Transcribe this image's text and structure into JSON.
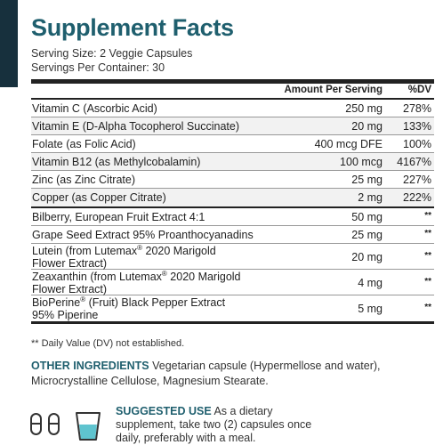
{
  "title": "Supplement Facts",
  "serving_size": "Serving Size: 2 Veggie Capsules",
  "servings_per_container": "Servings Per Container: 30",
  "header": {
    "amount": "Amount Per Serving",
    "dv": "%DV"
  },
  "vitamins": [
    {
      "name": "Vitamin C (Ascorbic Acid)",
      "amount": "250 mg",
      "dv": "278%"
    },
    {
      "name": "Vitamin E (D-Alpha Tocopherol Succinate)",
      "amount": "20 mg",
      "dv": "133%"
    },
    {
      "name": "Folate (as Folic Acid)",
      "amount": "400 mcg DFE",
      "dv": "100%"
    },
    {
      "name": "Vitamin B12 (as Methylcobalamin)",
      "amount": "100 mcg",
      "dv": "4167%"
    },
    {
      "name": "Zinc (as Zinc Citrate)",
      "amount": "25 mg",
      "dv": "227%"
    },
    {
      "name": "Copper (as Copper Citrate)",
      "amount": "2 mg",
      "dv": "222%"
    }
  ],
  "extracts": [
    {
      "name": "Bilberry, European Fruit Extract 4:1",
      "amount": "50 mg",
      "dv": "**"
    },
    {
      "name": "Grape Seed Extract 95% Proanthocyanadins",
      "amount": "25 mg",
      "dv": "**"
    },
    {
      "name_a": "Lutein (from Lutemax",
      "reg": "®",
      "name_b": " 2020 Marigold",
      "name_c": "Flower Extract)",
      "amount": "20 mg",
      "dv": "**"
    },
    {
      "name_a": "Zeaxanthin (from Lutemax",
      "reg": "®",
      "name_b": " 2020 Marigold",
      "name_c": "Flower Extract)",
      "amount": "4 mg",
      "dv": "**"
    },
    {
      "name_a": "BioPerine",
      "reg": "®",
      "name_b": " (Fruit) Black Pepper Extract",
      "name_c": "95% Piperine",
      "amount": "5 mg",
      "dv": "**"
    }
  ],
  "footnote": "** Daily Value (DV) not established.",
  "other_ingredients": {
    "label": "OTHER INGREDIENTS",
    "text": " Vegetarian capsule (Hypermellose and water), Microcrystalline Cellulose, Magnesium Stearate."
  },
  "suggested_use": {
    "label": "SUGGESTED USE",
    "text": " As a dietary supplement, take two (2) capsules once daily, preferably with a meal."
  },
  "icons": [
    "capsule-icon",
    "capsule-icon",
    "cup-of-water-icon"
  ],
  "colors": {
    "accent": "#1f5f6e",
    "band": "#17303d",
    "rule": "#222222",
    "shade": "#f2f2f2",
    "water": "#5fc4cf"
  }
}
